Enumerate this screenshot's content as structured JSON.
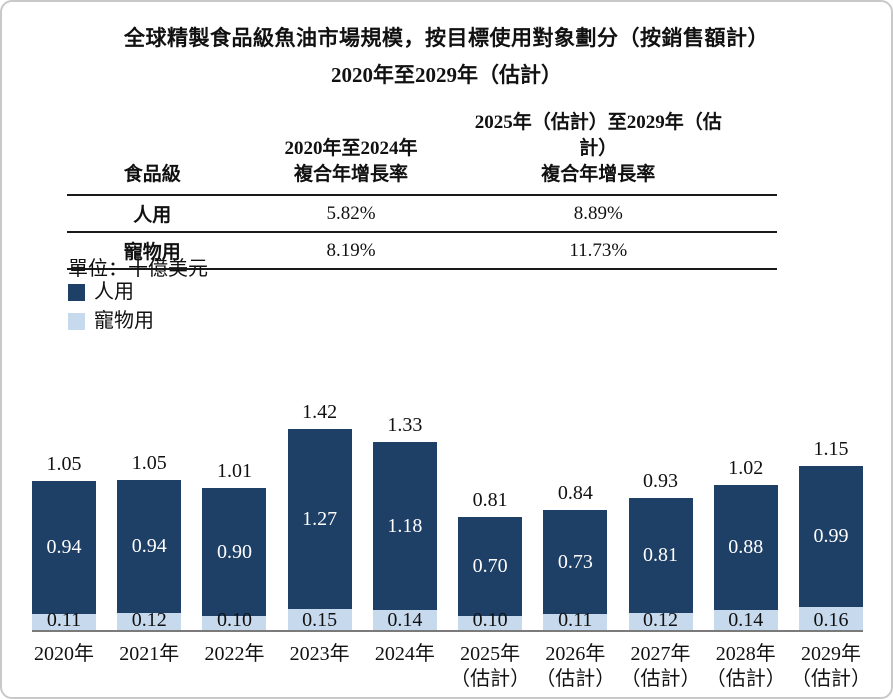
{
  "title": "全球精製食品級魚油市場規模，按目標使用對象劃分（按銷售額計）",
  "subtitle": "2020年至2029年（估計）",
  "table": {
    "headers": {
      "col1": "食品級",
      "col2_line1": "2020年至2024年",
      "col2_line2": "複合年增長率",
      "col3_line1": "2025年（估計）至2029年（估計）",
      "col3_line2": "複合年增長率"
    },
    "rows": [
      {
        "label": "人用",
        "cagr_2020_2024": "5.82%",
        "cagr_2025_2029": "8.89%"
      },
      {
        "label": "寵物用",
        "cagr_2020_2024": "8.19%",
        "cagr_2025_2029": "11.73%"
      }
    ]
  },
  "unit_label": "單位：十億美元",
  "legend": [
    {
      "label": "人用",
      "color": "#1e3f66"
    },
    {
      "label": "寵物用",
      "color": "#c7d9ec"
    }
  ],
  "colors": {
    "human_series": "#1e3f66",
    "pet_series": "#c7d9ec",
    "axis_line": "#7a7a7a"
  },
  "chart_data": {
    "type": "bar",
    "stacked": true,
    "title": "全球精製食品級魚油市場規模，按目標使用對象劃分（按銷售額計）2020年至2029年（估計）",
    "unit": "十億美元",
    "xlabel": "",
    "ylabel": "",
    "legend_position": "top-left",
    "grid": false,
    "ylim": [
      0,
      1.55
    ],
    "categories": [
      "2020年",
      "2021年",
      "2022年",
      "2023年",
      "2024年",
      "2025年\n（估計）",
      "2026年\n（估計）",
      "2027年\n（估計）",
      "2028年\n（估計）",
      "2029年\n（估計）"
    ],
    "series": [
      {
        "name": "人用",
        "color": "#1e3f66",
        "values": [
          0.94,
          0.94,
          0.9,
          1.27,
          1.18,
          0.7,
          0.73,
          0.81,
          0.88,
          0.99
        ]
      },
      {
        "name": "寵物用",
        "color": "#c7d9ec",
        "values": [
          0.11,
          0.12,
          0.1,
          0.15,
          0.14,
          0.1,
          0.11,
          0.12,
          0.14,
          0.16
        ]
      }
    ],
    "totals": [
      1.05,
      1.05,
      1.01,
      1.42,
      1.33,
      0.81,
      0.84,
      0.93,
      1.02,
      1.15
    ]
  }
}
